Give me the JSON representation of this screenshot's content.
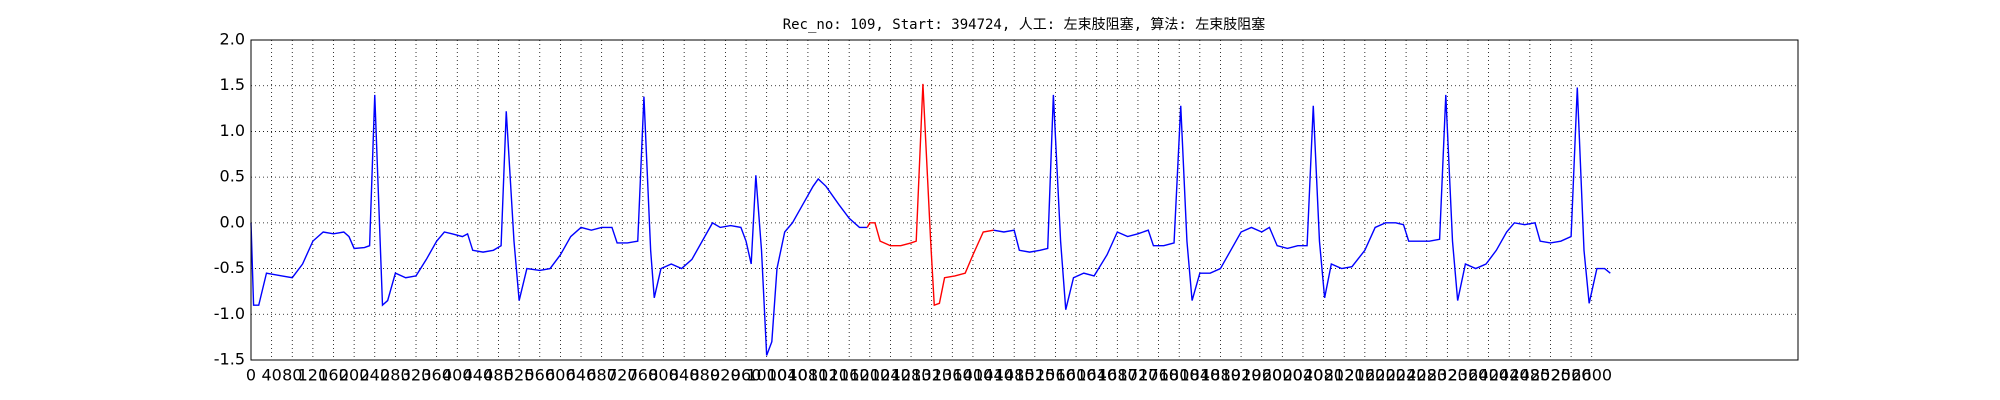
{
  "chart_data": {
    "type": "line",
    "title": "Rec_no: 109, Start: 394724, 人工: 左束肢阻塞, 算法: 左束肢阻塞",
    "x": [
      0,
      5,
      15,
      30,
      60,
      80,
      100,
      120,
      140,
      160,
      180,
      190,
      200,
      220,
      230,
      240,
      255,
      265,
      280,
      300,
      320,
      340,
      360,
      375,
      390,
      410,
      420,
      430,
      450,
      470,
      485,
      495,
      510,
      520,
      535,
      560,
      580,
      600,
      620,
      640,
      660,
      680,
      700,
      710,
      730,
      750,
      762,
      775,
      782,
      795,
      815,
      835,
      855,
      875,
      895,
      910,
      930,
      950,
      960,
      970,
      979,
      990,
      1000,
      1010,
      1020,
      1035,
      1050,
      1070,
      1090,
      1100,
      1115,
      1140,
      1160,
      1180,
      1195,
      1200,
      1210,
      1220,
      1240,
      1260,
      1280,
      1290,
      1303,
      1318,
      1325,
      1335,
      1345,
      1365,
      1385,
      1400,
      1420,
      1440,
      1460,
      1480,
      1490,
      1510,
      1530,
      1545,
      1556,
      1570,
      1580,
      1595,
      1615,
      1635,
      1660,
      1680,
      1700,
      1720,
      1740,
      1750,
      1770,
      1790,
      1803,
      1815,
      1825,
      1840,
      1860,
      1880,
      1900,
      1920,
      1940,
      1960,
      1975,
      1990,
      2010,
      2030,
      2048,
      2060,
      2072,
      2082,
      2095,
      2115,
      2135,
      2160,
      2180,
      2200,
      2220,
      2235,
      2245,
      2265,
      2285,
      2305,
      2317,
      2330,
      2340,
      2355,
      2375,
      2395,
      2415,
      2435,
      2450,
      2470,
      2490,
      2500,
      2520,
      2540,
      2560,
      2572,
      2585,
      2595,
      2610,
      2625,
      2636
    ],
    "series": [
      {
        "color": "#0000ff",
        "values": [
          0.0,
          -0.9,
          -0.9,
          -0.55,
          -0.58,
          -0.6,
          -0.45,
          -0.2,
          -0.1,
          -0.12,
          -0.1,
          -0.15,
          -0.28,
          -0.27,
          -0.25,
          1.4,
          -0.9,
          -0.85,
          -0.55,
          -0.6,
          -0.58,
          -0.4,
          -0.2,
          -0.1,
          -0.12,
          -0.15,
          -0.12,
          -0.3,
          -0.32,
          -0.3,
          -0.25,
          1.22,
          -0.2,
          -0.85,
          -0.5,
          -0.52,
          -0.5,
          -0.35,
          -0.15,
          -0.05,
          -0.08,
          -0.05,
          -0.05,
          -0.22,
          -0.22,
          -0.2,
          1.38,
          -0.3,
          -0.82,
          -0.5,
          -0.45,
          -0.5,
          -0.4,
          -0.2,
          0.0,
          -0.05,
          -0.03,
          -0.05,
          -0.2,
          -0.45,
          0.52,
          -0.3,
          -1.45,
          -1.3,
          -0.5,
          -0.1,
          0.0,
          0.2,
          0.4,
          0.48,
          0.4,
          0.2,
          0.05,
          -0.05,
          -0.05,
          null,
          null,
          null,
          null,
          null,
          null,
          null,
          null,
          null,
          null,
          null,
          null,
          null,
          null,
          null,
          null,
          -0.08,
          -0.1,
          -0.08,
          -0.3,
          -0.32,
          -0.3,
          -0.28,
          1.4,
          -0.2,
          -0.95,
          -0.6,
          -0.55,
          -0.58,
          -0.35,
          -0.1,
          -0.15,
          -0.12,
          -0.08,
          -0.25,
          -0.25,
          -0.22,
          1.28,
          -0.2,
          -0.85,
          -0.55,
          -0.55,
          -0.5,
          -0.3,
          -0.1,
          -0.05,
          -0.1,
          -0.05,
          -0.25,
          -0.28,
          -0.25,
          -0.25,
          1.28,
          -0.2,
          -0.82,
          -0.45,
          -0.5,
          -0.48,
          -0.3,
          -0.05,
          0.0,
          0.0,
          -0.02,
          -0.2,
          -0.2,
          -0.2,
          -0.18,
          1.4,
          -0.2,
          -0.85,
          -0.45,
          -0.5,
          -0.45,
          -0.3,
          -0.1,
          0.0,
          -0.02,
          0.0,
          -0.2,
          -0.22,
          -0.2,
          -0.15,
          1.48,
          -0.3,
          -0.88,
          -0.5,
          -0.5,
          -0.55
        ]
      },
      {
        "color": "#ff0000",
        "values": [
          null,
          null,
          null,
          null,
          null,
          null,
          null,
          null,
          null,
          null,
          null,
          null,
          null,
          null,
          null,
          null,
          null,
          null,
          null,
          null,
          null,
          null,
          null,
          null,
          null,
          null,
          null,
          null,
          null,
          null,
          null,
          null,
          null,
          null,
          null,
          null,
          null,
          null,
          null,
          null,
          null,
          null,
          null,
          null,
          null,
          null,
          null,
          null,
          null,
          null,
          null,
          null,
          null,
          null,
          null,
          null,
          null,
          null,
          null,
          null,
          null,
          null,
          null,
          null,
          null,
          null,
          null,
          null,
          null,
          null,
          null,
          null,
          null,
          null,
          -0.05,
          0.0,
          0.0,
          -0.2,
          -0.25,
          -0.25,
          -0.22,
          -0.2,
          1.52,
          -0.2,
          -0.9,
          -0.88,
          -0.6,
          -0.58,
          -0.55,
          -0.35,
          -0.1,
          -0.08,
          null,
          null,
          null,
          null,
          null,
          null,
          null,
          null,
          null,
          null,
          null,
          null,
          null,
          null,
          null,
          null,
          null,
          null,
          null,
          null,
          null,
          null,
          null,
          null,
          null,
          null,
          null,
          null,
          null,
          null,
          null,
          null,
          null,
          null,
          null,
          null,
          null,
          null,
          null,
          null,
          null,
          null,
          null,
          null,
          null,
          null,
          null,
          null,
          null,
          null,
          null,
          null,
          null,
          null,
          null,
          null,
          null,
          null,
          null,
          null,
          null,
          null,
          null,
          null,
          null,
          null,
          null,
          null,
          null,
          null,
          null
        ]
      }
    ],
    "xlim": [
      0,
      3000
    ],
    "xticks": [
      0,
      40,
      80,
      120,
      160,
      200,
      240,
      280,
      320,
      360,
      400,
      440,
      480,
      520,
      560,
      600,
      640,
      680,
      720,
      760,
      800,
      840,
      880,
      920,
      960,
      1000,
      1040,
      1080,
      1120,
      1160,
      1200,
      1240,
      1280,
      1320,
      1360,
      1400,
      1440,
      1480,
      1520,
      1560,
      1600,
      1640,
      1680,
      1720,
      1760,
      1800,
      1840,
      1880,
      1920,
      1960,
      2000,
      2040,
      2080,
      2120,
      2160,
      2200,
      2240,
      2280,
      2320,
      2360,
      2400,
      2440,
      2480,
      2520,
      2560,
      2600
    ],
    "ylim": [
      -1.5,
      2.0
    ],
    "yticks": [
      {
        "value": -1.5,
        "label": "-1.5"
      },
      {
        "value": -1.0,
        "label": "-1.0"
      },
      {
        "value": -0.5,
        "label": "-0.5"
      },
      {
        "value": 0,
        "label": "0.0"
      },
      {
        "value": 0.5,
        "label": "0.5"
      },
      {
        "value": 1.0,
        "label": "1.0"
      },
      {
        "value": 1.5,
        "label": "1.5"
      },
      {
        "value": 2.0,
        "label": "2.0"
      }
    ],
    "grid": true
  }
}
